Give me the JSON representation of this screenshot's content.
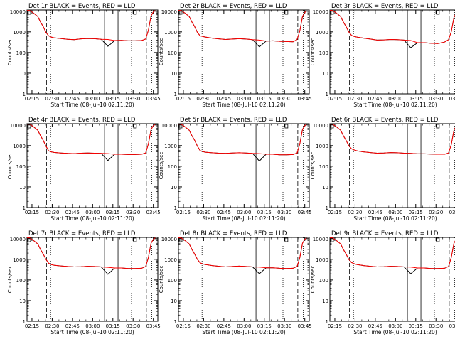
{
  "chart_data": {
    "type": "line",
    "grid": false,
    "yscale": "log",
    "ylim": [
      1,
      10000
    ],
    "ylabel": "Counts/sec",
    "xlabel": "Start Time (08-Jul-10 02:11:20)",
    "x_tick_labels": [
      "02:15",
      "02:30",
      "02:45",
      "03:00",
      "03:15",
      "03:30",
      "03:45"
    ],
    "y_tick_labels": [
      "1",
      "10",
      "100",
      "1000",
      "10000"
    ],
    "series_names": [
      "Events",
      "LLD"
    ],
    "series_colors": [
      "#000000",
      "#ff0000"
    ],
    "x_minutes": [
      0,
      2,
      5,
      8,
      10,
      12,
      14,
      16,
      18,
      20,
      25,
      30,
      35,
      40,
      45,
      50,
      55,
      60,
      65,
      70,
      75,
      80,
      85,
      88,
      90,
      92,
      93.5,
      95
    ],
    "panels": [
      {
        "title": "Det 1r BLACK = Events, RED = LLD",
        "events": [
          11000,
          11000,
          8000,
          5500,
          3000,
          1800,
          950,
          650,
          560,
          520,
          480,
          440,
          420,
          460,
          480,
          470,
          440,
          200,
          380,
          390,
          370,
          370,
          380,
          450,
          1200,
          6000,
          9000,
          11000
        ],
        "lld": [
          11000,
          11000,
          8000,
          5500,
          3000,
          1800,
          950,
          650,
          560,
          520,
          480,
          440,
          420,
          460,
          480,
          470,
          440,
          430,
          380,
          390,
          370,
          370,
          380,
          450,
          1200,
          6000,
          9000,
          11000
        ]
      },
      {
        "title": "Det 2r BLACK = Events, RED = LLD",
        "events": [
          11000,
          11000,
          8000,
          5500,
          3000,
          1800,
          950,
          650,
          600,
          560,
          500,
          460,
          430,
          450,
          470,
          450,
          420,
          190,
          360,
          370,
          350,
          340,
          330,
          430,
          1100,
          5500,
          8500,
          10500
        ],
        "lld": [
          11000,
          11000,
          8000,
          5500,
          3000,
          1800,
          950,
          650,
          600,
          560,
          500,
          460,
          430,
          450,
          470,
          450,
          420,
          400,
          360,
          370,
          350,
          340,
          330,
          430,
          1100,
          5500,
          8500,
          10500
        ]
      },
      {
        "title": "Det 3r BLACK = Events, RED = LLD",
        "events": [
          11000,
          11000,
          8000,
          5500,
          3000,
          1800,
          1000,
          680,
          600,
          560,
          500,
          450,
          400,
          410,
          430,
          420,
          400,
          170,
          300,
          300,
          280,
          270,
          320,
          420,
          1000,
          5000,
          8000,
          10500
        ],
        "lld": [
          11000,
          11000,
          8000,
          5500,
          3000,
          1800,
          1000,
          680,
          600,
          560,
          500,
          450,
          400,
          410,
          430,
          420,
          400,
          380,
          300,
          300,
          280,
          270,
          320,
          420,
          1000,
          5000,
          8000,
          10500
        ]
      },
      {
        "title": "Det 4r BLACK = Events, RED = LLD",
        "events": [
          11000,
          11000,
          8000,
          5500,
          3000,
          1800,
          950,
          560,
          500,
          470,
          440,
          420,
          410,
          430,
          440,
          430,
          420,
          190,
          380,
          380,
          370,
          370,
          380,
          440,
          1200,
          6000,
          9000,
          11000
        ],
        "lld": [
          11000,
          11000,
          8000,
          5500,
          3000,
          1800,
          950,
          560,
          500,
          470,
          440,
          420,
          410,
          430,
          440,
          430,
          420,
          410,
          380,
          380,
          370,
          370,
          380,
          440,
          1200,
          6000,
          9000,
          11000
        ]
      },
      {
        "title": "Det 5r BLACK = Events, RED = LLD",
        "events": [
          11000,
          11000,
          8000,
          5500,
          3000,
          1800,
          950,
          580,
          520,
          480,
          450,
          430,
          420,
          440,
          450,
          440,
          420,
          180,
          380,
          380,
          360,
          360,
          370,
          440,
          1200,
          6000,
          9000,
          11000
        ],
        "lld": [
          11000,
          11000,
          8000,
          5500,
          3000,
          1800,
          950,
          580,
          520,
          480,
          450,
          430,
          420,
          440,
          450,
          440,
          420,
          410,
          380,
          380,
          360,
          360,
          370,
          440,
          1200,
          6000,
          9000,
          11000
        ]
      },
      {
        "title": "Det 6r BLACK = Events, RED = LLD",
        "events": [
          11000,
          11000,
          8000,
          5500,
          3000,
          1800,
          1000,
          700,
          620,
          560,
          500,
          460,
          430,
          440,
          460,
          450,
          430,
          420,
          400,
          400,
          390,
          380,
          380,
          440,
          1100,
          5500,
          8500,
          10500
        ],
        "lld": [
          11000,
          11000,
          8000,
          5500,
          3000,
          1800,
          1000,
          700,
          620,
          560,
          500,
          460,
          430,
          440,
          460,
          450,
          430,
          420,
          400,
          400,
          390,
          380,
          380,
          440,
          1100,
          5500,
          8500,
          10500
        ]
      },
      {
        "title": "Det 7r BLACK = Events, RED = LLD",
        "events": [
          11000,
          11000,
          8000,
          5500,
          3000,
          1800,
          1000,
          650,
          560,
          520,
          480,
          450,
          430,
          440,
          460,
          450,
          430,
          190,
          380,
          380,
          360,
          360,
          370,
          450,
          1200,
          6000,
          9000,
          11000
        ],
        "lld": [
          11000,
          11000,
          8000,
          5500,
          3000,
          1800,
          1000,
          650,
          560,
          520,
          480,
          450,
          430,
          440,
          460,
          450,
          430,
          410,
          380,
          380,
          360,
          360,
          370,
          450,
          1200,
          6000,
          9000,
          11000
        ]
      },
      {
        "title": "Det 8r BLACK = Events, RED = LLD",
        "events": [
          11000,
          11000,
          8000,
          5500,
          3000,
          1800,
          1000,
          680,
          600,
          560,
          500,
          460,
          430,
          450,
          470,
          450,
          430,
          200,
          390,
          390,
          370,
          360,
          370,
          450,
          1200,
          6000,
          9000,
          11000
        ],
        "lld": [
          11000,
          11000,
          8000,
          5500,
          3000,
          1800,
          1000,
          680,
          600,
          560,
          500,
          460,
          430,
          450,
          470,
          450,
          430,
          420,
          390,
          390,
          370,
          360,
          370,
          450,
          1200,
          6000,
          9000,
          11000
        ]
      },
      {
        "title": "Det 9r BLACK = Events, RED = LLD",
        "events": [
          11000,
          11000,
          8000,
          5500,
          3000,
          1800,
          1000,
          700,
          620,
          560,
          500,
          460,
          430,
          440,
          460,
          450,
          430,
          200,
          380,
          380,
          360,
          360,
          370,
          450,
          1200,
          6000,
          9000,
          11000
        ],
        "lld": [
          11000,
          11000,
          8000,
          5500,
          3000,
          1800,
          1000,
          700,
          620,
          560,
          500,
          460,
          430,
          440,
          460,
          450,
          430,
          420,
          380,
          380,
          360,
          360,
          370,
          450,
          1200,
          6000,
          9000,
          11000
        ]
      }
    ]
  }
}
